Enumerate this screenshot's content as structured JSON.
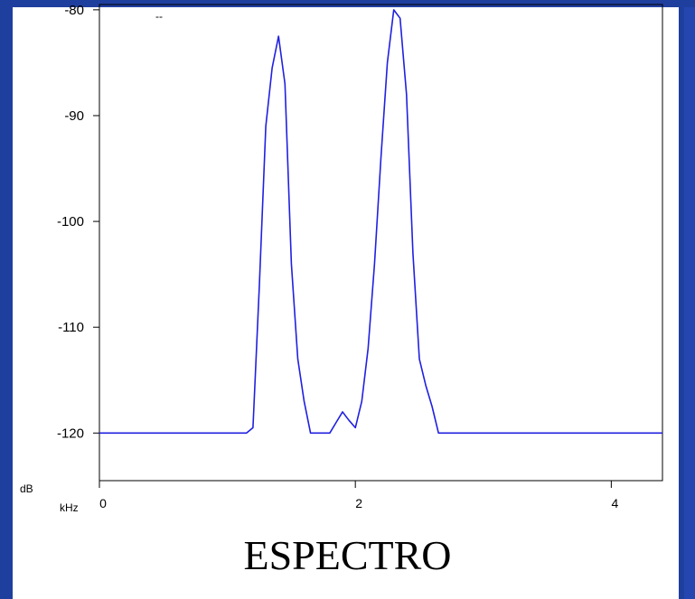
{
  "caption": "ESPECTRO",
  "chart_data": {
    "type": "line",
    "title": "",
    "xlabel": "kHz",
    "ylabel": "dB",
    "legend_text": "--",
    "xlim": [
      0,
      4.4
    ],
    "ylim": [
      -124.5,
      -79.5
    ],
    "xticks": [
      0,
      2,
      4
    ],
    "xtick_labels": [
      "0",
      "2",
      "4"
    ],
    "yticks": [
      -80,
      -90,
      -100,
      -110,
      -120
    ],
    "ytick_labels": [
      "-80",
      "-90",
      "-100",
      "-110",
      "-120"
    ],
    "grid": false,
    "series": [
      {
        "color": "#2020e0",
        "x": [
          0,
          1.15,
          1.2,
          1.25,
          1.3,
          1.35,
          1.4,
          1.45,
          1.5,
          1.55,
          1.6,
          1.65,
          1.7,
          1.75,
          1.8,
          1.85,
          1.9,
          1.95,
          2.0,
          2.05,
          2.1,
          2.15,
          2.2,
          2.25,
          2.3,
          2.35,
          2.4,
          2.45,
          2.5,
          2.55,
          2.6,
          2.65,
          2.7,
          2.75,
          2.8,
          4.4
        ],
        "y": [
          -120,
          -120,
          -119.5,
          -106,
          -91,
          -85.5,
          -82.5,
          -87,
          -104,
          -113,
          -117,
          -120,
          -120,
          -120,
          -120,
          -119,
          -118,
          -118.8,
          -119.5,
          -117,
          -112,
          -104,
          -94,
          -85,
          -80,
          -80.8,
          -88,
          -103,
          -113,
          -115.5,
          -117.5,
          -120,
          -120,
          -120,
          -120,
          -120
        ]
      }
    ]
  }
}
